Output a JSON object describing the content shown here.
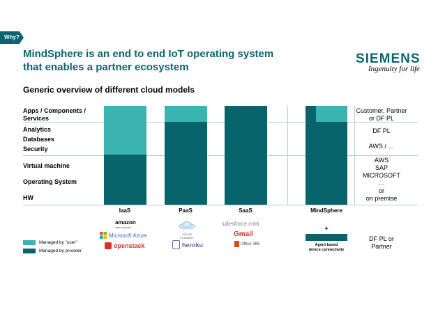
{
  "tag": "Why?",
  "title_line1": "MindSphere is an end to end IoT operating system",
  "title_line2": "that enables a partner ecosystem",
  "brand": {
    "name": "SIEMENS",
    "tagline": "Ingenuity for life"
  },
  "subtitle": "Generic overview of different cloud models",
  "rows": {
    "apps_line1": "Apps / Components /",
    "apps_line2": "Services",
    "analytics": "Analytics",
    "databases": "Databases",
    "security": "Security",
    "vm": "Virtual machine",
    "os": "Operating System",
    "hw": "HW"
  },
  "columns": [
    "IaaS",
    "PaaS",
    "SaaS",
    "MindSphere"
  ],
  "right_labels": {
    "r1_line1": "Customer, Partner",
    "r1_line2": "or DF PL",
    "r2": "DF PL",
    "r3": "AWS / …",
    "r4_line1": "AWS",
    "r4_line2": "SAP",
    "r4_line3": "MICROSOFT",
    "r4_line4": "…",
    "r4_line5": "or",
    "r4_line6": "on premise",
    "r5_line1": "DF PL or",
    "r5_line2": "Partner"
  },
  "legend": {
    "user": "Managed by \"user\"",
    "provider": "Managed by provider"
  },
  "colors": {
    "user": "#3bb3b0",
    "provider": "#07636c",
    "accent": "#0a6570"
  },
  "vendor_logos": {
    "amazon": "amazon",
    "amazon_sub": "web services",
    "azure": "Microsoft Azure",
    "openstack": "openstack",
    "cloudfoundry_line1": "CLOUD",
    "cloudfoundry_line2": "FOUNDRY",
    "heroku": "heroku",
    "salesforce": "salesforce.com",
    "gmail": "Gmail",
    "office365": "Office 365"
  },
  "mindsphere_plus": "+",
  "agent_line1": "Agent based",
  "agent_line2": "device connectivity"
}
